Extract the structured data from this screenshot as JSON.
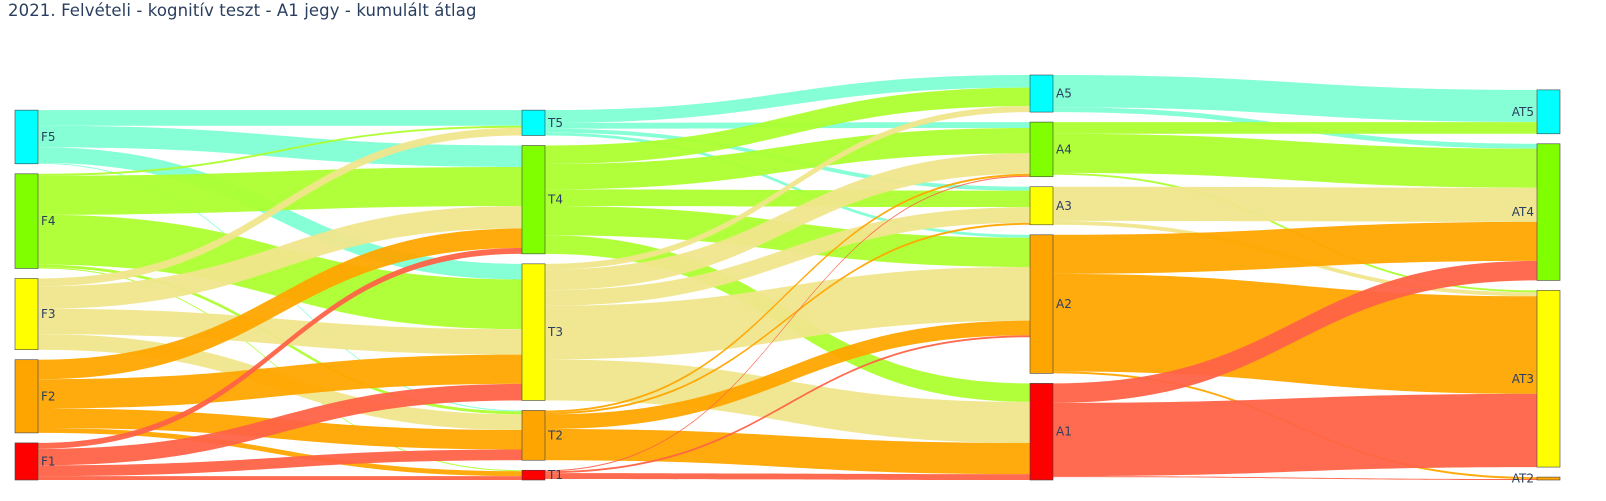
{
  "chart_data": {
    "type": "sankey",
    "title": "2021. Felvételi - kognitív teszt - A1 jegy - kumulált átlag",
    "stages": [
      {
        "nodes": [
          {
            "id": "F5",
            "label": "F5",
            "color": "#00ffff"
          },
          {
            "id": "F4",
            "label": "F4",
            "color": "#7fff00"
          },
          {
            "id": "F3",
            "label": "F3",
            "color": "#ffff00"
          },
          {
            "id": "F2",
            "label": "F2",
            "color": "#ffa500"
          },
          {
            "id": "F1",
            "label": "F1",
            "color": "#ff0000"
          }
        ]
      },
      {
        "nodes": [
          {
            "id": "T5",
            "label": "T5",
            "color": "#00ffff"
          },
          {
            "id": "T4",
            "label": "T4",
            "color": "#7fff00"
          },
          {
            "id": "T3",
            "label": "T3",
            "color": "#ffff00"
          },
          {
            "id": "T2",
            "label": "T2",
            "color": "#ffa500"
          },
          {
            "id": "T1",
            "label": "T1",
            "color": "#ff0000"
          }
        ]
      },
      {
        "nodes": [
          {
            "id": "A5",
            "label": "A5",
            "color": "#00ffff"
          },
          {
            "id": "A4",
            "label": "A4",
            "color": "#7fff00"
          },
          {
            "id": "A3",
            "label": "A3",
            "color": "#ffff00"
          },
          {
            "id": "A2",
            "label": "A2",
            "color": "#ffa500"
          },
          {
            "id": "A1",
            "label": "A1",
            "color": "#ff0000"
          }
        ]
      },
      {
        "nodes": [
          {
            "id": "AT5",
            "label": "AT5",
            "color": "#00ffff"
          },
          {
            "id": "AT4",
            "label": "AT4",
            "color": "#7fff00"
          },
          {
            "id": "AT3",
            "label": "AT3",
            "color": "#ffff00"
          },
          {
            "id": "AT2",
            "label": "AT2",
            "color": "#ffa500"
          }
        ]
      }
    ],
    "link_colors": {
      "5": "#7fffd4",
      "4": "#adff2f",
      "3": "#f0e68c",
      "2": "#ffa500",
      "1": "#ff6347"
    },
    "links": [
      {
        "source": "F5",
        "target": "T5",
        "value": 16
      },
      {
        "source": "F5",
        "target": "T4",
        "value": 22
      },
      {
        "source": "F5",
        "target": "T3",
        "value": 16
      },
      {
        "source": "F5",
        "target": "T2",
        "value": 1
      },
      {
        "source": "F4",
        "target": "T5",
        "value": 2
      },
      {
        "source": "F4",
        "target": "T4",
        "value": 40
      },
      {
        "source": "F4",
        "target": "T3",
        "value": 51
      },
      {
        "source": "F4",
        "target": "T2",
        "value": 3
      },
      {
        "source": "F4",
        "target": "T1",
        "value": 1
      },
      {
        "source": "F3",
        "target": "T5",
        "value": 8
      },
      {
        "source": "F3",
        "target": "T4",
        "value": 23
      },
      {
        "source": "F3",
        "target": "T3",
        "value": 26
      },
      {
        "source": "F3",
        "target": "T2",
        "value": 16
      },
      {
        "source": "F2",
        "target": "T4",
        "value": 20
      },
      {
        "source": "F2",
        "target": "T3",
        "value": 30
      },
      {
        "source": "F2",
        "target": "T2",
        "value": 20
      },
      {
        "source": "F2",
        "target": "T1",
        "value": 5
      },
      {
        "source": "F1",
        "target": "T4",
        "value": 6
      },
      {
        "source": "F1",
        "target": "T3",
        "value": 17
      },
      {
        "source": "F1",
        "target": "T2",
        "value": 11
      },
      {
        "source": "F1",
        "target": "T1",
        "value": 4
      },
      {
        "source": "T5",
        "target": "A5",
        "value": 13
      },
      {
        "source": "T5",
        "target": "A4",
        "value": 6
      },
      {
        "source": "T5",
        "target": "A3",
        "value": 4
      },
      {
        "source": "T5",
        "target": "A2",
        "value": 3
      },
      {
        "source": "T4",
        "target": "A5",
        "value": 19
      },
      {
        "source": "T4",
        "target": "A4",
        "value": 26
      },
      {
        "source": "T4",
        "target": "A3",
        "value": 17
      },
      {
        "source": "T4",
        "target": "A2",
        "value": 30
      },
      {
        "source": "T4",
        "target": "A1",
        "value": 19
      },
      {
        "source": "T3",
        "target": "A5",
        "value": 6
      },
      {
        "source": "T3",
        "target": "A4",
        "value": 21
      },
      {
        "source": "T3",
        "target": "A3",
        "value": 16
      },
      {
        "source": "T3",
        "target": "A2",
        "value": 55
      },
      {
        "source": "T3",
        "target": "A1",
        "value": 42
      },
      {
        "source": "T2",
        "target": "A4",
        "value": 2
      },
      {
        "source": "T2",
        "target": "A3",
        "value": 2
      },
      {
        "source": "T2",
        "target": "A2",
        "value": 15
      },
      {
        "source": "T2",
        "target": "A1",
        "value": 32
      },
      {
        "source": "T1",
        "target": "A4",
        "value": 1
      },
      {
        "source": "T1",
        "target": "A2",
        "value": 2
      },
      {
        "source": "T1",
        "target": "A1",
        "value": 6
      },
      {
        "source": "A5",
        "target": "AT5",
        "value": 33
      },
      {
        "source": "A5",
        "target": "AT4",
        "value": 5
      },
      {
        "source": "A4",
        "target": "AT5",
        "value": 12
      },
      {
        "source": "A4",
        "target": "AT4",
        "value": 40
      },
      {
        "source": "A4",
        "target": "AT3",
        "value": 2
      },
      {
        "source": "A3",
        "target": "AT4",
        "value": 35
      },
      {
        "source": "A3",
        "target": "AT3",
        "value": 4
      },
      {
        "source": "A2",
        "target": "AT4",
        "value": 40
      },
      {
        "source": "A2",
        "target": "AT3",
        "value": 100
      },
      {
        "source": "A2",
        "target": "AT2",
        "value": 2
      },
      {
        "source": "A1",
        "target": "AT4",
        "value": 20
      },
      {
        "source": "A1",
        "target": "AT3",
        "value": 75
      },
      {
        "source": "A1",
        "target": "AT2",
        "value": 1
      }
    ]
  }
}
